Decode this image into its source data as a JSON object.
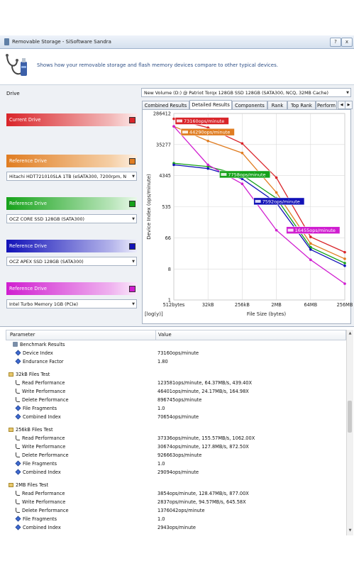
{
  "window": {
    "title": "Removable Storage - SiSoftware Sandra",
    "help_label": "?",
    "close_label": "x"
  },
  "header": {
    "description": "Shows how your removable storage and flash memory devices compare to other typical devices."
  },
  "drive": {
    "label": "Drive",
    "selected": "New Volume (D:) @ Patriot Torqx 128GB SSD 128GB (SATA300, NCQ, 32MB Cache)"
  },
  "references": [
    {
      "label": "Current Drive",
      "color": "#d9252a",
      "device": ""
    },
    {
      "label": "Reference Drive",
      "color": "#e07d22",
      "device": "Hitachi HDT721010SLA 1TB (eSATA300, 7200rpm, N"
    },
    {
      "label": "Reference Drive",
      "color": "#16a21a",
      "device": "OCZ CORE SSD 128GB (SATA300)"
    },
    {
      "label": "Reference Drive",
      "color": "#1212b8",
      "device": "OCZ APEX SSD 128GB (SATA300)"
    },
    {
      "label": "Reference Drive",
      "color": "#d01ed0",
      "device": "Intel Turbo Memory 1GB (PCIe)"
    }
  ],
  "tabs": [
    "Combined Results",
    "Detailed Results",
    "Components",
    "Rank",
    "Top Rank",
    "Perform"
  ],
  "active_tab": "Detailed Results",
  "chart_data": {
    "type": "line",
    "ylabel": "Device Index (ops/minute)",
    "xlabel": "File Size (bytes)",
    "scale_note": "[log(y)]",
    "y_scale": "log",
    "categories": [
      "512bytes",
      "32kB",
      "256kB",
      "2MB",
      "64MB",
      "256MB"
    ],
    "yticks": [
      "286412",
      "35277",
      "4345",
      "535",
      "66",
      "8",
      "1"
    ],
    "ylim": [
      1,
      286412
    ],
    "grid": true,
    "series": [
      {
        "color": "#d9252a",
        "values": [
          200000,
          110000,
          38000,
          3800,
          70,
          25
        ]
      },
      {
        "color": "#e07d22",
        "values": [
          120000,
          45000,
          20000,
          1400,
          45,
          16
        ]
      },
      {
        "color": "#16a21a",
        "values": [
          10000,
          8000,
          4500,
          950,
          35,
          12
        ]
      },
      {
        "color": "#1212b8",
        "values": [
          9000,
          7000,
          3500,
          700,
          30,
          10
        ]
      },
      {
        "color": "#d01ed0",
        "values": [
          120000,
          9000,
          2500,
          110,
          15,
          3
        ]
      }
    ],
    "annotations": [
      {
        "text": "73160ops/minute",
        "color": "#d9252a"
      },
      {
        "text": "44290ops/minute",
        "color": "#e07d22"
      },
      {
        "text": "7758ops/minute",
        "color": "#16a21a"
      },
      {
        "text": "7592ops/minute",
        "color": "#1212b8"
      },
      {
        "text": "16455ops/minute",
        "color": "#d01ed0"
      }
    ]
  },
  "results": {
    "col_param": "Parameter",
    "col_value": "Value",
    "rows": [
      {
        "icon": "bench",
        "indent": 1,
        "name": "Benchmark Results",
        "value": ""
      },
      {
        "icon": "diam",
        "indent": 2,
        "name": "Device Index",
        "value": "73160ops/minute"
      },
      {
        "icon": "diam",
        "indent": 2,
        "name": "Endurance Factor",
        "value": "1.80"
      },
      {
        "icon": "fold",
        "indent": 0,
        "name": "32kB Files Test",
        "value": ""
      },
      {
        "icon": "hook",
        "indent": 2,
        "name": "Read Performance",
        "value": "123581ops/minute, 64.37MB/s, 439.40X"
      },
      {
        "icon": "hook",
        "indent": 2,
        "name": "Write Performance",
        "value": "46401ops/minute, 24.17MB/s, 164.98X"
      },
      {
        "icon": "hook",
        "indent": 2,
        "name": "Delete Performance",
        "value": "896745ops/minute"
      },
      {
        "icon": "diam",
        "indent": 2,
        "name": "File Fragments",
        "value": "1.0"
      },
      {
        "icon": "diam",
        "indent": 2,
        "name": "Combined Index",
        "value": "70654ops/minute"
      },
      {
        "icon": "fold",
        "indent": 0,
        "name": "256kB Files Test",
        "value": ""
      },
      {
        "icon": "hook",
        "indent": 2,
        "name": "Read Performance",
        "value": "37336ops/minute, 155.57MB/s, 1062.00X"
      },
      {
        "icon": "hook",
        "indent": 2,
        "name": "Write Performance",
        "value": "30674ops/minute, 127.8MB/s, 872.50X"
      },
      {
        "icon": "hook",
        "indent": 2,
        "name": "Delete Performance",
        "value": "926663ops/minute"
      },
      {
        "icon": "diam",
        "indent": 2,
        "name": "File Fragments",
        "value": "1.0"
      },
      {
        "icon": "diam",
        "indent": 2,
        "name": "Combined Index",
        "value": "29094ops/minute"
      },
      {
        "icon": "fold",
        "indent": 0,
        "name": "2MB Files Test",
        "value": ""
      },
      {
        "icon": "hook",
        "indent": 2,
        "name": "Read Performance",
        "value": "3854ops/minute, 128.47MB/s, 877.00X"
      },
      {
        "icon": "hook",
        "indent": 2,
        "name": "Write Performance",
        "value": "2837ops/minute, 94.57MB/s, 645.58X"
      },
      {
        "icon": "hook",
        "indent": 2,
        "name": "Delete Performance",
        "value": "1376042ops/minute"
      },
      {
        "icon": "diam",
        "indent": 2,
        "name": "File Fragments",
        "value": "1.0"
      },
      {
        "icon": "diam",
        "indent": 2,
        "name": "Combined Index",
        "value": "2943ops/minute"
      }
    ]
  }
}
